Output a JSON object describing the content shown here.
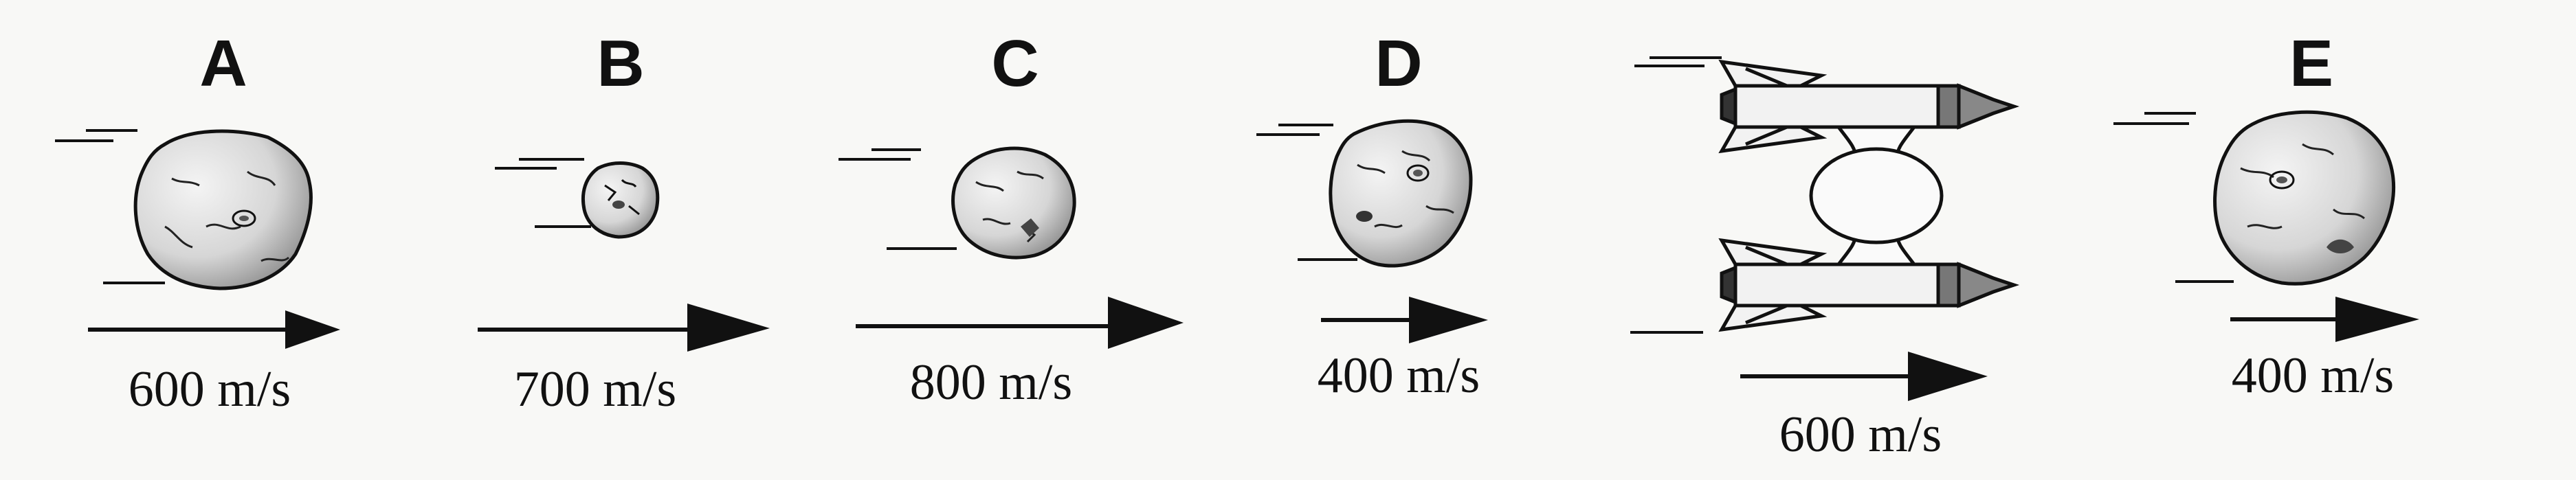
{
  "objects": [
    {
      "id": "A",
      "label": "A",
      "speed": "600 m/s"
    },
    {
      "id": "B",
      "label": "B",
      "speed": "700 m/s"
    },
    {
      "id": "C",
      "label": "C",
      "speed": "800 m/s"
    },
    {
      "id": "D",
      "label": "D",
      "speed": "400 m/s"
    },
    {
      "id": "ship",
      "label": "",
      "speed": "600 m/s"
    },
    {
      "id": "E",
      "label": "E",
      "speed": "400 m/s"
    }
  ],
  "colors": {
    "ink": "#111111",
    "paper": "#f8f8f6",
    "rock": "#dcdcdc",
    "rock_shadow": "#9a9a9a"
  },
  "icons": [
    "asteroid-icon",
    "spaceship-icon",
    "velocity-arrow"
  ]
}
